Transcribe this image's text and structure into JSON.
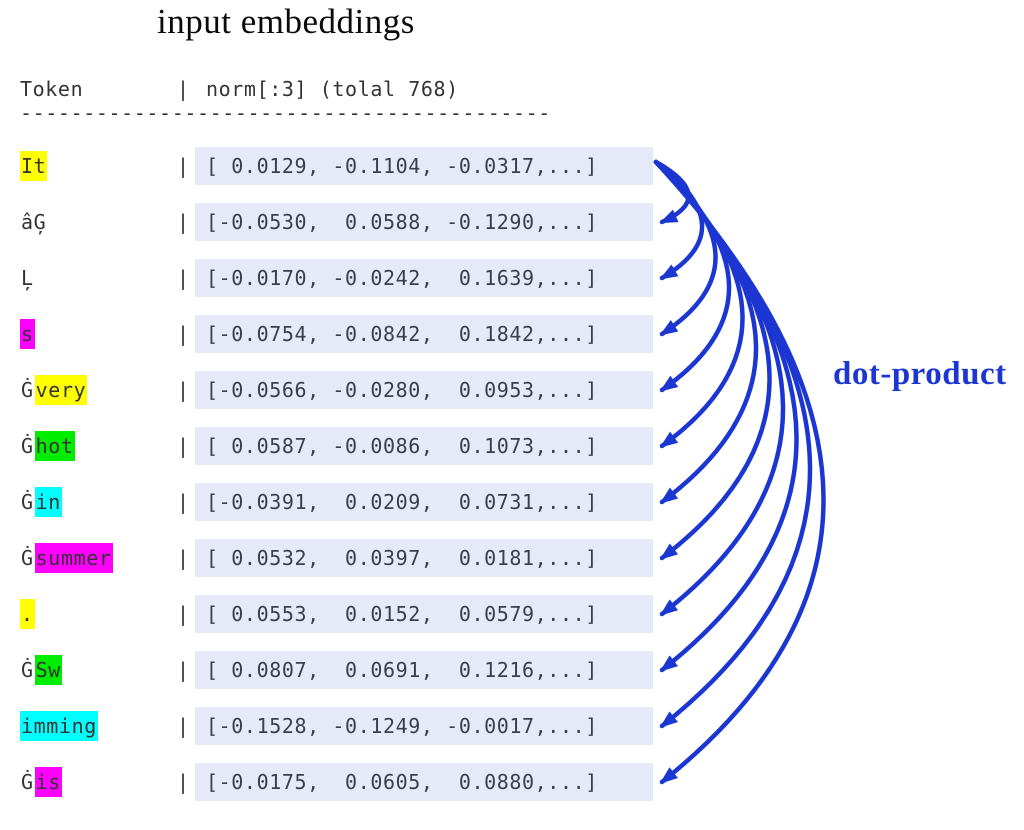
{
  "title": "input embeddings",
  "table": {
    "header": {
      "token_col": "Token",
      "separator": "|",
      "vector_col": "norm[:3] (tolal 768)"
    },
    "divider": "------------------------------------------",
    "rows": [
      {
        "token": [
          {
            "text": "It",
            "hl": "yellow"
          }
        ],
        "vector": "[ 0.0129, -0.1104, -0.0317,...]"
      },
      {
        "token": [
          {
            "text": "âĢ",
            "hl": "none"
          }
        ],
        "vector": "[-0.0530,  0.0588, -0.1290,...]"
      },
      {
        "token": [
          {
            "text": "Ļ",
            "hl": "none"
          }
        ],
        "vector": "[-0.0170, -0.0242,  0.1639,...]"
      },
      {
        "token": [
          {
            "text": "s",
            "hl": "magenta"
          }
        ],
        "vector": "[-0.0754, -0.0842,  0.1842,...]"
      },
      {
        "token": [
          {
            "text": "Ġ",
            "hl": "none"
          },
          {
            "text": "very",
            "hl": "yellow"
          }
        ],
        "vector": "[-0.0566, -0.0280,  0.0953,...]"
      },
      {
        "token": [
          {
            "text": "Ġ",
            "hl": "none"
          },
          {
            "text": "hot",
            "hl": "green"
          }
        ],
        "vector": "[ 0.0587, -0.0086,  0.1073,...]"
      },
      {
        "token": [
          {
            "text": "Ġ",
            "hl": "none"
          },
          {
            "text": "in",
            "hl": "cyan"
          }
        ],
        "vector": "[-0.0391,  0.0209,  0.0731,...]"
      },
      {
        "token": [
          {
            "text": "Ġ",
            "hl": "none"
          },
          {
            "text": "summer",
            "hl": "magenta"
          }
        ],
        "vector": "[ 0.0532,  0.0397,  0.0181,...]"
      },
      {
        "token": [
          {
            "text": ".",
            "hl": "yellow"
          }
        ],
        "vector": "[ 0.0553,  0.0152,  0.0579,...]"
      },
      {
        "token": [
          {
            "text": "Ġ",
            "hl": "none"
          },
          {
            "text": "Sw",
            "hl": "green"
          }
        ],
        "vector": "[ 0.0807,  0.0691,  0.1216,...]"
      },
      {
        "token": [
          {
            "text": "imming",
            "hl": "cyan"
          }
        ],
        "vector": "[-0.1528, -0.1249, -0.0017,...]"
      },
      {
        "token": [
          {
            "text": "Ġ",
            "hl": "none"
          },
          {
            "text": "is",
            "hl": "magenta"
          }
        ],
        "vector": "[-0.0175,  0.0605,  0.0880,...]"
      }
    ]
  },
  "highlight_colors": {
    "yellow": "#ffff00",
    "magenta": "#ff00ff",
    "green": "#00ed00",
    "cyan": "#00ffff",
    "none": "transparent"
  },
  "annotation": {
    "label": "dot-product",
    "color": "#1c36d2"
  },
  "arrows": {
    "source_row": 1,
    "target_rows": [
      2,
      3,
      4,
      5,
      6,
      7,
      8,
      9,
      10,
      11,
      12
    ],
    "color": "#1c36d2"
  }
}
